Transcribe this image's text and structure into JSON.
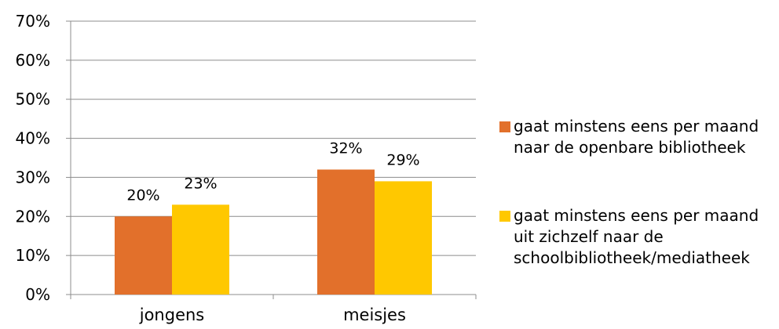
{
  "chart_data": {
    "type": "bar",
    "categories": [
      "jongens",
      "meisjes"
    ],
    "series": [
      {
        "name": "gaat minstens eens per maand naar de openbare bibliotheek",
        "values": [
          20,
          32
        ],
        "labels": [
          "20%",
          "32%"
        ],
        "color": "#E2702B"
      },
      {
        "name": "gaat minstens eens per maand uit zichzelf naar de schoolbibliotheek/mediatheek",
        "values": [
          23,
          29
        ],
        "labels": [
          "23%",
          "29%"
        ],
        "color": "#FFC800"
      }
    ],
    "yticks": [
      "0%",
      "10%",
      "20%",
      "30%",
      "40%",
      "50%",
      "60%",
      "70%"
    ],
    "ylim": [
      0,
      70
    ],
    "grid": true,
    "legend_position": "right",
    "title": "",
    "xlabel": "",
    "ylabel": ""
  },
  "colors": {
    "grid": "#8C8C8C",
    "axis": "#8C8C8C"
  }
}
